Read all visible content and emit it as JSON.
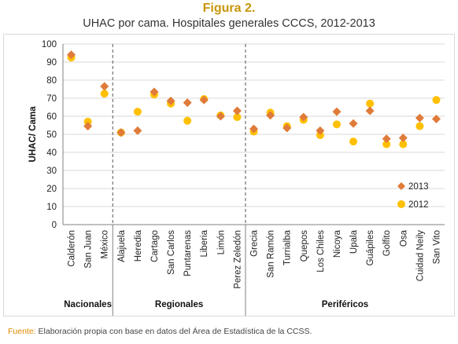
{
  "figure": {
    "title": "Figura 2.",
    "subtitle": "UHAC por cama. Hospitales generales CCCS, 2012-2013"
  },
  "source": {
    "label": "Fuente:",
    "text": " Elaboración propia con base en datos del Área de Estadística de la CCSS."
  },
  "colors": {
    "series_2013": "#e07b39",
    "series_2012": "#ffc000",
    "grid": "#d9d9d9",
    "axis": "#808080"
  },
  "chart_data": {
    "type": "scatter",
    "title": "",
    "xlabel": "",
    "ylabel": "UHAC/ Cama",
    "ylim": [
      0,
      100
    ],
    "yticks": [
      0,
      10,
      20,
      30,
      40,
      50,
      60,
      70,
      80,
      90,
      100
    ],
    "grid": true,
    "legend": "right",
    "categories": [
      "Calderón",
      "San Juan",
      "México",
      "Alajuela",
      "Heredia",
      "Cartago",
      "San Carlos",
      "Puntarenas",
      "Liberia",
      "Limón",
      "Perez Zeledón",
      "Grecia",
      "San Ramón",
      "Turrialba",
      "Quepos",
      "Los Chiles",
      "Nicoya",
      "Upala",
      "Guápiles",
      "Golfito",
      "Osa",
      "Cuidad Neily",
      "San Vito"
    ],
    "groups": [
      {
        "name": "Nacionales",
        "count": 3
      },
      {
        "name": "Regionales",
        "count": 8
      },
      {
        "name": "Periféricos",
        "count": 12
      }
    ],
    "series": [
      {
        "name": "2013",
        "marker": "diamond",
        "values": [
          94,
          54.5,
          76.5,
          51,
          52,
          73.5,
          68.5,
          67.5,
          69,
          60,
          63,
          53,
          60.5,
          53.5,
          59.5,
          52,
          62.5,
          56,
          63,
          47.5,
          48,
          59,
          58.5
        ]
      },
      {
        "name": "2012",
        "marker": "circle",
        "values": [
          92.5,
          57,
          72.5,
          51,
          62.5,
          72,
          67,
          57.5,
          69.5,
          60.5,
          59.5,
          51.5,
          62,
          54.5,
          58,
          49.5,
          55.5,
          46,
          67,
          44.5,
          44.5,
          54.5,
          69
        ]
      }
    ]
  }
}
